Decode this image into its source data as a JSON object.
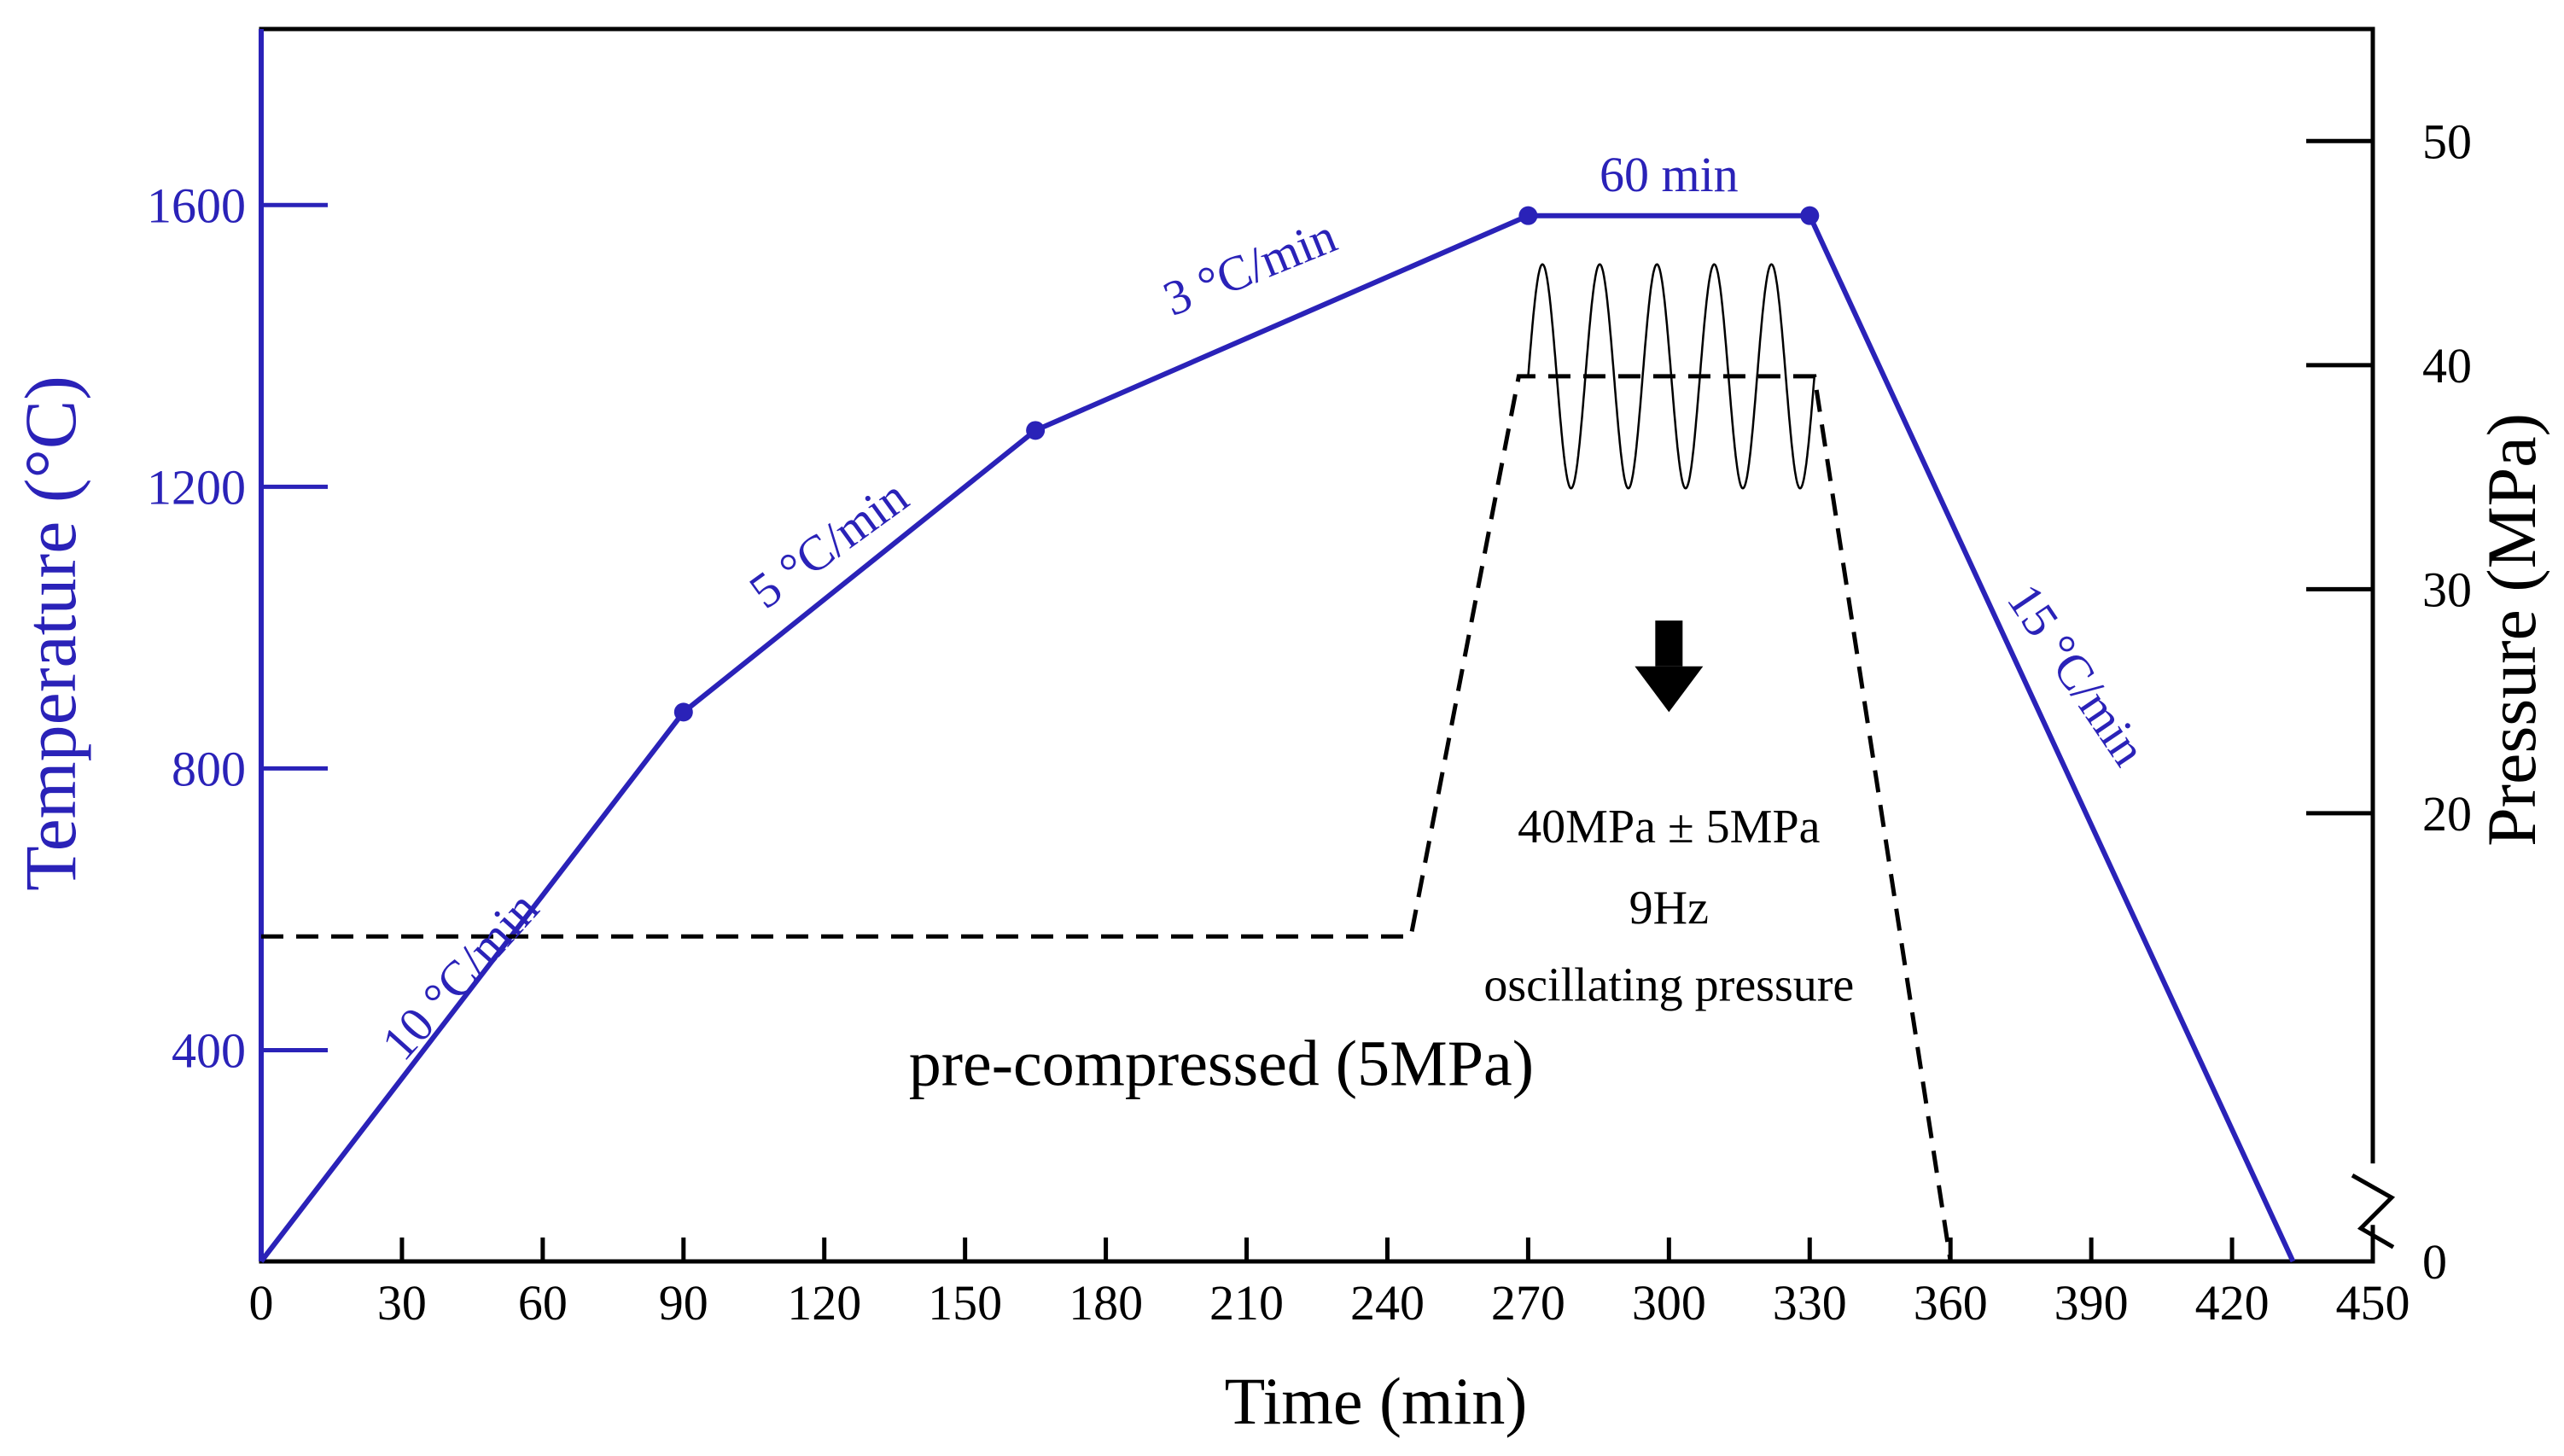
{
  "colors": {
    "temperature": "#2a22b8",
    "pressure": "#000000",
    "oscillation": "#000000",
    "axis": "#000000",
    "background": "#ffffff"
  },
  "chart_data": {
    "type": "line",
    "title": "",
    "xlabel": "Time (min)",
    "ylabel": "Temperature (°C)",
    "y2label": "Pressure (MPa)",
    "xlim": [
      0,
      450
    ],
    "ylim": [
      100,
      1850
    ],
    "y2lim": [
      0,
      55
    ],
    "y2_axis_break": "between 0 and 20",
    "grid": false,
    "x_ticks": [
      0,
      30,
      60,
      90,
      120,
      150,
      180,
      210,
      240,
      270,
      300,
      330,
      360,
      390,
      420,
      450
    ],
    "y_ticks": [
      400,
      800,
      1200,
      1600
    ],
    "y2_ticks": [
      0,
      20,
      30,
      40,
      50
    ],
    "series": [
      {
        "name": "Temperature",
        "axis": "left",
        "style": "solid",
        "color_key": "temperature",
        "points": [
          [
            0,
            100
          ],
          [
            90,
            880
          ],
          [
            165,
            1280
          ],
          [
            270,
            1585
          ],
          [
            330,
            1585
          ],
          [
            433,
            100
          ]
        ],
        "markers": [
          [
            90,
            880
          ],
          [
            165,
            1280
          ],
          [
            270,
            1585
          ],
          [
            330,
            1585
          ]
        ]
      },
      {
        "name": "Pressure",
        "axis": "right",
        "style": "dashed",
        "color_key": "pressure",
        "points": [
          [
            0,
            14.5
          ],
          [
            245,
            14.5
          ],
          [
            268,
            39.5
          ],
          [
            331,
            39.5
          ],
          [
            360,
            0
          ]
        ]
      },
      {
        "name": "Oscillating pressure",
        "axis": "right",
        "style": "thin-solid",
        "color_key": "oscillation",
        "start": 270,
        "end": 331,
        "center": 39.5,
        "amplitude": 5,
        "cycles": 5
      }
    ],
    "annotations": [
      {
        "text": "10 °C/min",
        "x": 45,
        "y": 490,
        "angle_deg": -48,
        "color_key": "temperature"
      },
      {
        "text": "5 °C/min",
        "x": 123,
        "y": 1100,
        "angle_deg": -36,
        "color_key": "temperature"
      },
      {
        "text": "3 °C/min",
        "x": 212,
        "y": 1490,
        "angle_deg": -22,
        "color_key": "temperature"
      },
      {
        "text": "60 min",
        "x": 300,
        "y": 1620,
        "angle_deg": 0,
        "color_key": "temperature"
      },
      {
        "text": "15 °C/min",
        "x": 384,
        "y": 920,
        "angle_deg": 56,
        "color_key": "temperature"
      },
      {
        "text": "pre-compressed (5MPa)",
        "x": 138,
        "y": 350,
        "angle_deg": 0,
        "color_key": "pressure"
      },
      {
        "text": "40MPa ± 5MPa",
        "x": 300,
        "y": 695,
        "angle_deg": 0,
        "color_key": "pressure"
      },
      {
        "text": "9Hz",
        "x": 300,
        "y": 580,
        "angle_deg": 0,
        "color_key": "pressure"
      },
      {
        "text": "oscillating pressure",
        "x": 300,
        "y": 470,
        "angle_deg": 0,
        "color_key": "pressure"
      }
    ],
    "arrow": {
      "x": 300,
      "y_from": 1010,
      "y_to": 880,
      "direction": "down"
    }
  }
}
